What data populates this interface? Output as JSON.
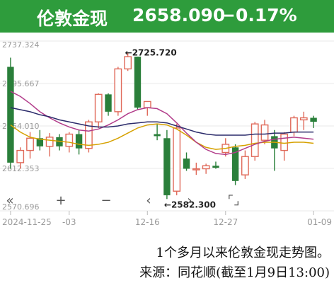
{
  "header": {
    "name": "伦敦金现",
    "price": "2658.090",
    "change": "−0.17%"
  },
  "colors": {
    "header_bg": "#2e9c3c",
    "up": "#e06a5a",
    "down": "#2a7f3a",
    "ma1": "#d6a100",
    "ma2": "#b23c8a",
    "ma3": "#2a2a6a",
    "grid": "#e8e8e8"
  },
  "toolbar": {
    "buttons": [
      {
        "name": "rewind-icon",
        "glyph": "«"
      },
      {
        "name": "zoom-in-icon",
        "glyph": "+"
      },
      {
        "name": "zoom-out-icon",
        "glyph": "−"
      },
      {
        "name": "prev-icon",
        "glyph": "‹"
      },
      {
        "name": "next-icon",
        "glyph": "›"
      },
      {
        "name": "fullscreen-icon",
        "glyph": "⌜⌟"
      }
    ]
  },
  "caption": {
    "line1": "1个多月以来伦敦金现走势图。",
    "line2": "来源：同花顺(截至1月9日13:00)"
  },
  "chart_data": {
    "type": "candlestick",
    "ylim": [
      2570.696,
      2737.324
    ],
    "y_ticks": [
      "2737.324",
      "2695.667",
      "2654.010",
      "2612.353",
      "2570.696"
    ],
    "x_ticks": [
      {
        "label": "2024-11-25",
        "index": 0
      },
      {
        "label": "-03",
        "index": 6
      },
      {
        "label": "12-16",
        "index": 14
      },
      {
        "label": "12-27",
        "index": 22
      },
      {
        "label": "01-09",
        "index": 31
      }
    ],
    "annotations": [
      {
        "text": "←2725.720",
        "value": 2725.72,
        "index": 12
      },
      {
        "text": "←2582.300",
        "value": 2582.3,
        "index": 16
      }
    ],
    "candles": [
      {
        "o": 2712,
        "h": 2721,
        "l": 2612,
        "c": 2618
      },
      {
        "o": 2618,
        "h": 2633,
        "l": 2612,
        "c": 2630
      },
      {
        "o": 2630,
        "h": 2648,
        "l": 2622,
        "c": 2642
      },
      {
        "o": 2642,
        "h": 2650,
        "l": 2630,
        "c": 2634
      },
      {
        "o": 2634,
        "h": 2647,
        "l": 2624,
        "c": 2643
      },
      {
        "o": 2643,
        "h": 2646,
        "l": 2630,
        "c": 2634
      },
      {
        "o": 2634,
        "h": 2648,
        "l": 2628,
        "c": 2646
      },
      {
        "o": 2646,
        "h": 2650,
        "l": 2626,
        "c": 2632
      },
      {
        "o": 2632,
        "h": 2660,
        "l": 2628,
        "c": 2658
      },
      {
        "o": 2658,
        "h": 2686,
        "l": 2652,
        "c": 2685
      },
      {
        "o": 2685,
        "h": 2686,
        "l": 2664,
        "c": 2668
      },
      {
        "o": 2668,
        "h": 2712,
        "l": 2664,
        "c": 2710
      },
      {
        "o": 2710,
        "h": 2725.72,
        "l": 2708,
        "c": 2722
      },
      {
        "o": 2722,
        "h": 2722,
        "l": 2670,
        "c": 2672
      },
      {
        "o": 2672,
        "h": 2678,
        "l": 2664,
        "c": 2678
      },
      {
        "o": 2646,
        "h": 2656,
        "l": 2640,
        "c": 2644
      },
      {
        "o": 2642,
        "h": 2650,
        "l": 2582.3,
        "c": 2586
      },
      {
        "o": 2590,
        "h": 2656,
        "l": 2586,
        "c": 2652
      },
      {
        "o": 2622,
        "h": 2628,
        "l": 2610,
        "c": 2612
      },
      {
        "o": 2611,
        "h": 2618,
        "l": 2606,
        "c": 2612
      },
      {
        "o": 2612,
        "h": 2617,
        "l": 2607,
        "c": 2615
      },
      {
        "o": 2615,
        "h": 2619,
        "l": 2612,
        "c": 2613
      },
      {
        "o": 2628,
        "h": 2642,
        "l": 2624,
        "c": 2636
      },
      {
        "o": 2633,
        "h": 2636,
        "l": 2596,
        "c": 2600
      },
      {
        "o": 2606,
        "h": 2630,
        "l": 2602,
        "c": 2624
      },
      {
        "o": 2624,
        "h": 2658,
        "l": 2620,
        "c": 2656
      },
      {
        "o": 2640,
        "h": 2660,
        "l": 2636,
        "c": 2655
      },
      {
        "o": 2644,
        "h": 2650,
        "l": 2610,
        "c": 2632
      },
      {
        "o": 2630,
        "h": 2648,
        "l": 2620,
        "c": 2646
      },
      {
        "o": 2648,
        "h": 2664,
        "l": 2644,
        "c": 2662
      },
      {
        "o": 2660,
        "h": 2668,
        "l": 2650,
        "c": 2662
      },
      {
        "o": 2662,
        "h": 2664,
        "l": 2652,
        "c": 2658.09
      }
    ],
    "ma_lines": [
      {
        "color_key": "ma1",
        "values": [
          2655,
          2648,
          2643,
          2641,
          2640,
          2639,
          2638,
          2636,
          2635,
          2636,
          2638,
          2642,
          2647,
          2652,
          2655,
          2656,
          2655,
          2651,
          2645,
          2638,
          2633,
          2631,
          2632,
          2634,
          2635,
          2637,
          2638,
          2638,
          2637,
          2638,
          2638,
          2637
        ]
      },
      {
        "color_key": "ma2",
        "values": [
          2688,
          2683,
          2676,
          2668,
          2662,
          2657,
          2653,
          2650,
          2649,
          2651,
          2655,
          2660,
          2666,
          2670,
          2672,
          2671,
          2666,
          2657,
          2647,
          2638,
          2631,
          2627,
          2626,
          2628,
          2632,
          2636,
          2639,
          2641,
          2642,
          2643,
          2642,
          2641
        ]
      },
      {
        "color_key": "ma3",
        "values": [
          2672,
          2670,
          2668,
          2665,
          2663,
          2660,
          2658,
          2656,
          2654,
          2653,
          2653,
          2654,
          2656,
          2657,
          2658,
          2658,
          2657,
          2654,
          2651,
          2648,
          2646,
          2645,
          2645,
          2645,
          2645,
          2646,
          2646,
          2647,
          2647,
          2648,
          2648,
          2648
        ]
      }
    ]
  }
}
